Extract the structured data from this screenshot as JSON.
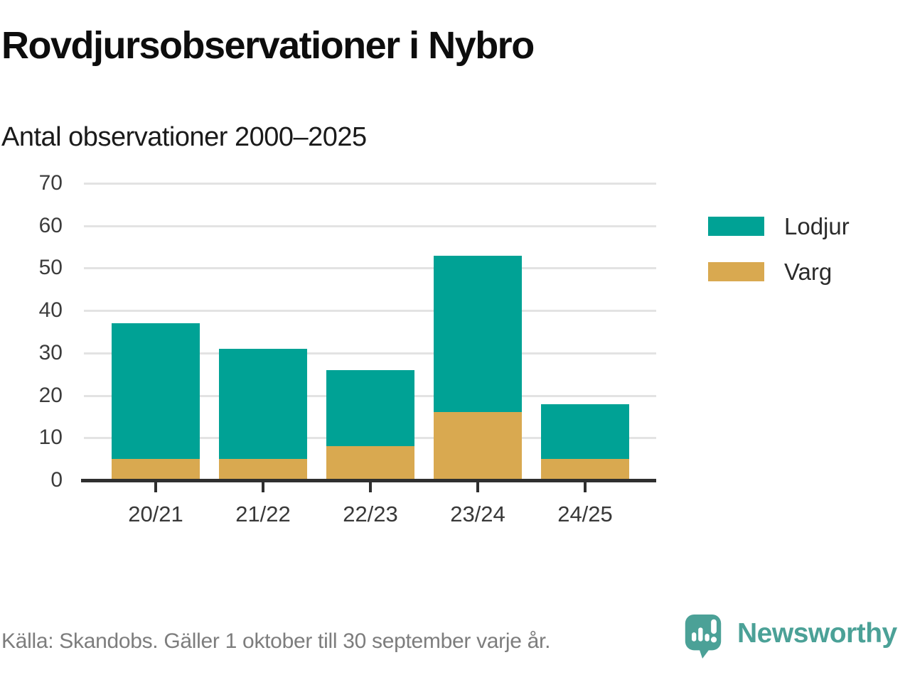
{
  "header": {
    "title": "Rovdjursobservationer i Nybro",
    "subtitle": "Antal observationer 2000–2025"
  },
  "chart_data": {
    "type": "bar",
    "stacked": true,
    "title": "Rovdjursobservationer i Nybro",
    "subtitle": "Antal observationer 2000–2025",
    "categories": [
      "20/21",
      "21/22",
      "22/23",
      "23/24",
      "24/25"
    ],
    "series": [
      {
        "name": "Lodjur",
        "color": "#00a295",
        "values": [
          32,
          26,
          18,
          37,
          13
        ]
      },
      {
        "name": "Varg",
        "color": "#d9a950",
        "values": [
          5,
          5,
          8,
          16,
          5
        ]
      }
    ],
    "stack_order_bottom_to_top": [
      "Varg",
      "Lodjur"
    ],
    "totals": [
      37,
      31,
      26,
      53,
      18
    ],
    "xlabel": "",
    "ylabel": "",
    "ylim": [
      0,
      70
    ],
    "yticks": [
      0,
      10,
      20,
      30,
      40,
      50,
      60,
      70
    ],
    "grid": true,
    "legend_position": "right"
  },
  "footer": {
    "source": "Källa: Skandobs. Gäller 1 oktober till 30 september varje år.",
    "brand": "Newsworthy",
    "brand_color": "#4ba197"
  }
}
